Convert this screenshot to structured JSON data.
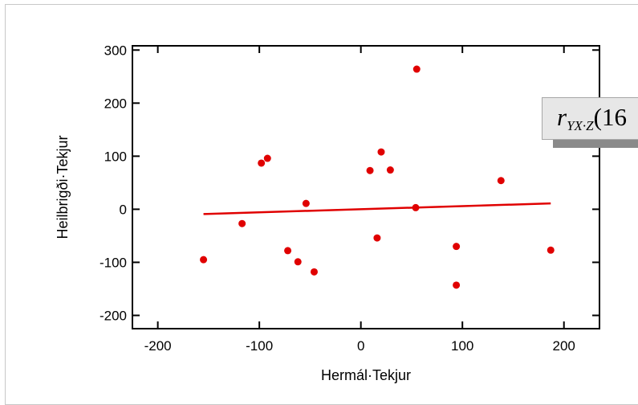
{
  "chart_data": {
    "type": "scatter",
    "title": "",
    "xlabel": "Hermál·Tekjur",
    "ylabel": "Heilbrigði·Tekjur",
    "xlim": [
      -225,
      235
    ],
    "ylim": [
      -225,
      308
    ],
    "xticks": [
      "-200",
      "-100",
      "0",
      "100",
      "200"
    ],
    "yticks": [
      "-200",
      "-100",
      "0",
      "100",
      "200",
      "300"
    ],
    "xtick_values": [
      -200,
      -100,
      0,
      100,
      200
    ],
    "ytick_values": [
      -200,
      -100,
      0,
      100,
      200,
      300
    ],
    "grid": false,
    "series": [
      {
        "points": [
          {
            "x": -155,
            "y": -95
          },
          {
            "x": -117,
            "y": -27
          },
          {
            "x": -98,
            "y": 87
          },
          {
            "x": -92,
            "y": 96
          },
          {
            "x": -72,
            "y": -78
          },
          {
            "x": -62,
            "y": -99
          },
          {
            "x": -54,
            "y": 11
          },
          {
            "x": -46,
            "y": -118
          },
          {
            "x": 9,
            "y": 73
          },
          {
            "x": 16,
            "y": -54
          },
          {
            "x": 20,
            "y": 108
          },
          {
            "x": 29,
            "y": 74
          },
          {
            "x": 54,
            "y": 3
          },
          {
            "x": 55,
            "y": 264
          },
          {
            "x": 94,
            "y": -70
          },
          {
            "x": 94,
            "y": -143
          },
          {
            "x": 138,
            "y": 54
          },
          {
            "x": 187,
            "y": -77
          }
        ]
      }
    ],
    "fit_line": {
      "x": [
        -155,
        187
      ],
      "y": [
        -9,
        11
      ]
    },
    "annotation": {
      "symbol": "r",
      "subscript": "YX·Z",
      "value_visible": "(16"
    },
    "colors": {
      "points": "#e00000",
      "line": "#e00000",
      "axes": "#000000"
    }
  }
}
